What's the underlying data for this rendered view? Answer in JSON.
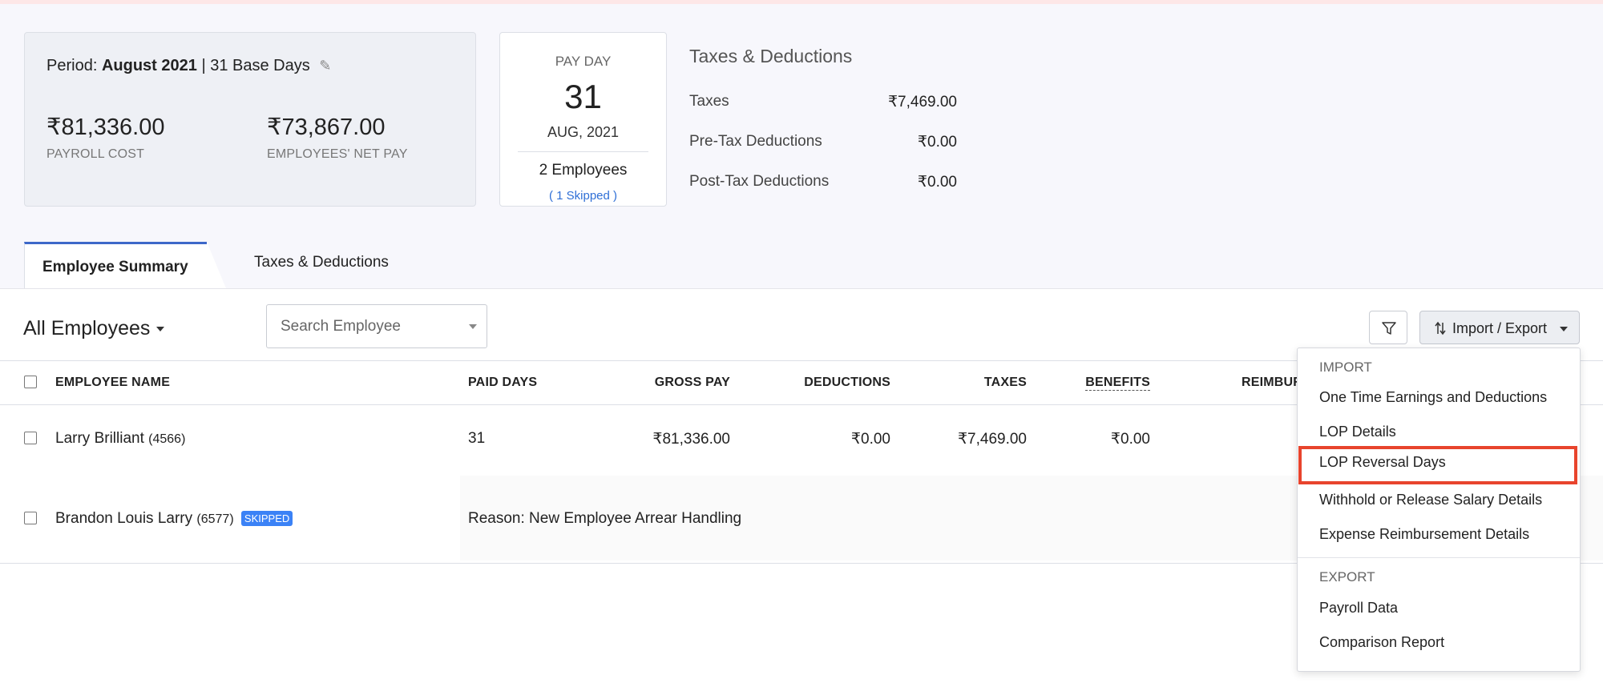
{
  "summary": {
    "period_label": "Period:",
    "period_value": "August 2021",
    "base_days": "| 31 Base Days",
    "payroll_cost": "₹81,336.00",
    "payroll_cost_label": "PAYROLL COST",
    "net_pay": "₹73,867.00",
    "net_pay_label": "EMPLOYEES' NET PAY"
  },
  "payday": {
    "label": "PAY DAY",
    "day": "31",
    "month": "AUG, 2021",
    "employees": "2 Employees",
    "skipped": "( 1 Skipped )"
  },
  "taxes_deductions": {
    "title": "Taxes & Deductions",
    "rows": [
      {
        "label": "Taxes",
        "value": "₹7,469.00"
      },
      {
        "label": "Pre-Tax Deductions",
        "value": "₹0.00"
      },
      {
        "label": "Post-Tax Deductions",
        "value": "₹0.00"
      }
    ]
  },
  "tabs": [
    "Employee Summary",
    "Taxes & Deductions"
  ],
  "toolbar": {
    "filter_dropdown": "All Employees",
    "search_placeholder": "Search Employee",
    "import_export_label": "Import / Export"
  },
  "table": {
    "headers": {
      "name": "EMPLOYEE NAME",
      "paid_days": "PAID DAYS",
      "gross_pay": "GROSS PAY",
      "deductions": "DEDUCTIONS",
      "taxes": "TAXES",
      "benefits": "BENEFITS",
      "reimbursements": "REIMBUR"
    },
    "rows": [
      {
        "name": "Larry Brilliant",
        "id": "(4566)",
        "paid_days": "31",
        "gross_pay": "₹81,336.00",
        "deductions": "₹0.00",
        "taxes": "₹7,469.00",
        "benefits": "₹0.00"
      },
      {
        "name": "Brandon Louis Larry",
        "id": "(6577)",
        "badge": "SKIPPED",
        "reason": "Reason: New Employee Arrear Handling"
      }
    ]
  },
  "menu": {
    "import_heading": "IMPORT",
    "import_items": [
      "One Time Earnings and Deductions",
      "LOP Details",
      "LOP Reversal Days",
      "Withhold or Release Salary Details",
      "Expense Reimbursement Details"
    ],
    "highlighted_item": "LOP Reversal Days",
    "export_heading": "EXPORT",
    "export_items": [
      "Payroll Data",
      "Comparison Report"
    ]
  },
  "colors": {
    "accent": "#3d68c9",
    "skipped_badge": "#3b82f6",
    "highlight_border": "#e8442d",
    "skipped_link": "#2f6fd6"
  },
  "icons": [
    "pencil-icon",
    "filter-icon",
    "import-export-icon",
    "chevron-down-icon"
  ]
}
